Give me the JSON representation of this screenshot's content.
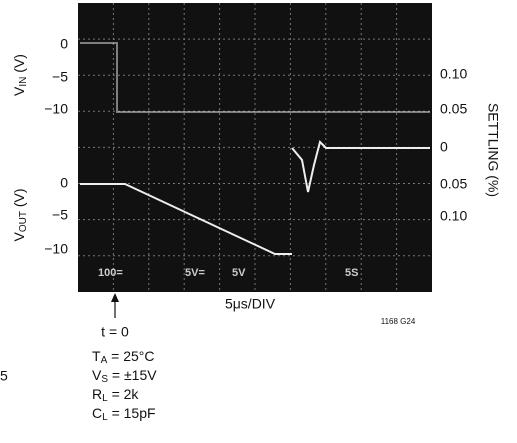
{
  "left_axis": {
    "vin_label": {
      "main": "V",
      "sub": "IN",
      "rest": " (V)"
    },
    "vin_ticks": [
      "0",
      "−5",
      "−10"
    ],
    "vout_label": {
      "main": "V",
      "sub": "OUT",
      "rest": " (V)"
    },
    "vout_ticks": [
      "0",
      "−5",
      "−10"
    ]
  },
  "right_axis": {
    "label": "SETTLING (%)",
    "ticks": [
      "0.10",
      "0.05",
      "0",
      "0.05",
      "0.10"
    ]
  },
  "x_label": "5μs/DIV",
  "figure_id": "1168 G24",
  "marker": "t = 0",
  "stray": "5",
  "scope_readout": [
    "100=",
    "5V=",
    "5V",
    "5S"
  ],
  "conditions": [
    {
      "main": "T",
      "sub": "A",
      "rest": " = 25°C"
    },
    {
      "main": "V",
      "sub": "S",
      "rest": " = ±15V"
    },
    {
      "main": "R",
      "sub": "L",
      "rest": " = 2k"
    },
    {
      "main": "C",
      "sub": "L",
      "rest": " = 15pF"
    }
  ]
}
